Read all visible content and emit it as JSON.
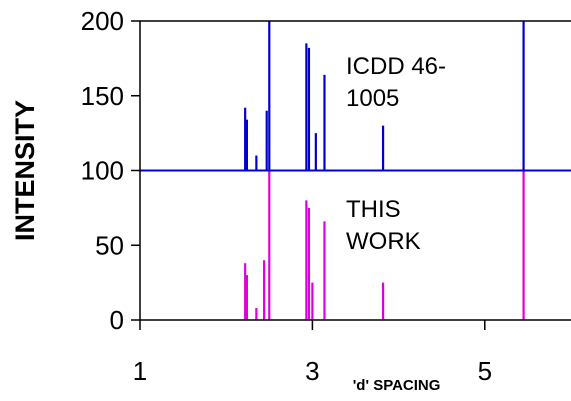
{
  "chart_data": {
    "type": "bar",
    "xlabel": "'d' SPACING",
    "ylabel": "INTENSITY",
    "xlim": [
      1,
      6
    ],
    "ylim": [
      0,
      200
    ],
    "x_ticks": [
      1,
      3,
      5
    ],
    "y_ticks": [
      0,
      50,
      100,
      150,
      200
    ],
    "baseline_line_y": 100,
    "grid": false,
    "legend": "none",
    "series": [
      {
        "name": "ICDD 46-1005",
        "color": "#0000cc",
        "offset": 100,
        "x": [
          2.22,
          2.24,
          2.35,
          2.47,
          2.5,
          2.93,
          2.96,
          3.04,
          3.14,
          3.82,
          5.45
        ],
        "values": [
          42,
          34,
          10,
          40,
          100,
          85,
          82,
          25,
          64,
          30,
          100
        ]
      },
      {
        "name": "THIS WORK",
        "color": "#dd00dd",
        "offset": 0,
        "x": [
          2.22,
          2.24,
          2.35,
          2.44,
          2.5,
          2.93,
          2.96,
          3.0,
          3.14,
          3.82,
          5.45
        ],
        "values": [
          38,
          30,
          8,
          40,
          100,
          80,
          75,
          25,
          66,
          25,
          100
        ]
      }
    ],
    "annotations": [
      {
        "lines": [
          "ICDD 46-",
          "1005"
        ],
        "series_index": 0
      },
      {
        "lines": [
          "THIS",
          "WORK"
        ],
        "series_index": 1
      }
    ]
  }
}
